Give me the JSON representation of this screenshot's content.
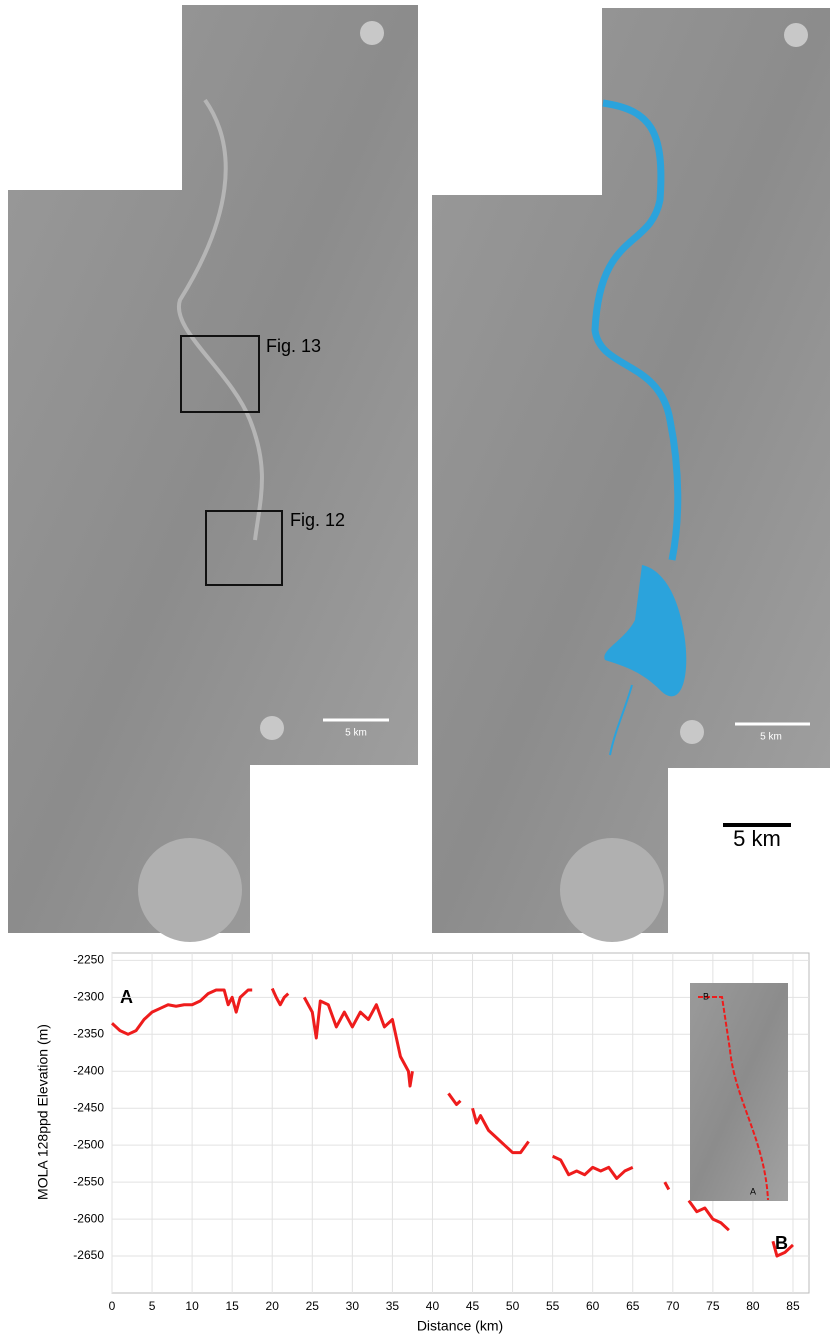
{
  "panels": {
    "fig13_label": "Fig. 13",
    "fig12_label": "Fig. 12",
    "small_scale_left": "5 km",
    "small_scale_right": "5 km",
    "scale_bar": "5 km"
  },
  "chart_data": {
    "type": "line",
    "xlabel": "Distance (km)",
    "ylabel": "MOLA 128ppd Elevation (m)",
    "annotations": [
      "A",
      "B"
    ],
    "inset_labels": [
      "B",
      "A"
    ],
    "x": [
      0,
      1,
      2,
      3,
      4,
      5,
      6,
      7,
      8,
      9,
      10,
      11,
      12,
      13,
      14,
      14.5,
      15,
      15.5,
      16,
      17,
      17.5,
      18.5,
      20,
      20.5,
      21,
      21.5,
      22,
      23,
      24,
      25,
      25.5,
      26,
      27,
      28,
      29,
      30,
      31,
      32,
      33,
      34,
      35,
      36,
      37,
      37.2,
      37.5,
      40,
      42,
      43,
      43.5,
      44,
      45,
      45.5,
      46,
      47,
      48,
      49,
      50,
      51,
      52,
      53.5,
      55,
      56,
      57,
      58,
      59,
      60,
      61,
      62,
      63,
      64,
      65,
      67,
      69,
      69.5,
      71,
      72,
      73,
      74,
      75,
      76,
      77,
      80,
      82.5,
      83,
      84,
      85
    ],
    "series": [
      {
        "color": "#ee1c1c",
        "values": [
          -2335,
          -2345,
          -2350,
          -2345,
          -2330,
          -2320,
          -2315,
          -2310,
          -2312,
          -2310,
          -2310,
          -2305,
          -2295,
          -2290,
          -2290,
          -2310,
          -2300,
          -2320,
          -2300,
          -2290,
          -2290,
          null,
          -2288,
          -2300,
          -2310,
          -2300,
          -2295,
          null,
          -2300,
          -2320,
          -2355,
          -2305,
          -2310,
          -2340,
          -2320,
          -2340,
          -2320,
          -2330,
          -2310,
          -2340,
          -2330,
          -2380,
          -2400,
          -2420,
          -2400,
          null,
          -2430,
          -2445,
          -2440,
          null,
          -2450,
          -2470,
          -2460,
          -2480,
          -2490,
          -2500,
          -2510,
          -2510,
          -2495,
          null,
          -2515,
          -2520,
          -2540,
          -2535,
          -2540,
          -2530,
          -2535,
          -2530,
          -2545,
          -2535,
          -2530,
          null,
          -2550,
          -2560,
          null,
          -2575,
          -2590,
          -2585,
          -2600,
          -2605,
          -2615,
          null,
          -2630,
          -2650,
          -2645,
          -2635
        ]
      }
    ],
    "xlim": [
      0,
      87
    ],
    "ylim": [
      -2700,
      -2240
    ],
    "xticks": [
      0,
      5,
      10,
      15,
      20,
      25,
      30,
      35,
      40,
      45,
      50,
      55,
      60,
      65,
      70,
      75,
      80,
      85
    ],
    "yticks": [
      -2250,
      -2300,
      -2350,
      -2400,
      -2450,
      -2500,
      -2550,
      -2600,
      -2650
    ],
    "grid": true
  }
}
